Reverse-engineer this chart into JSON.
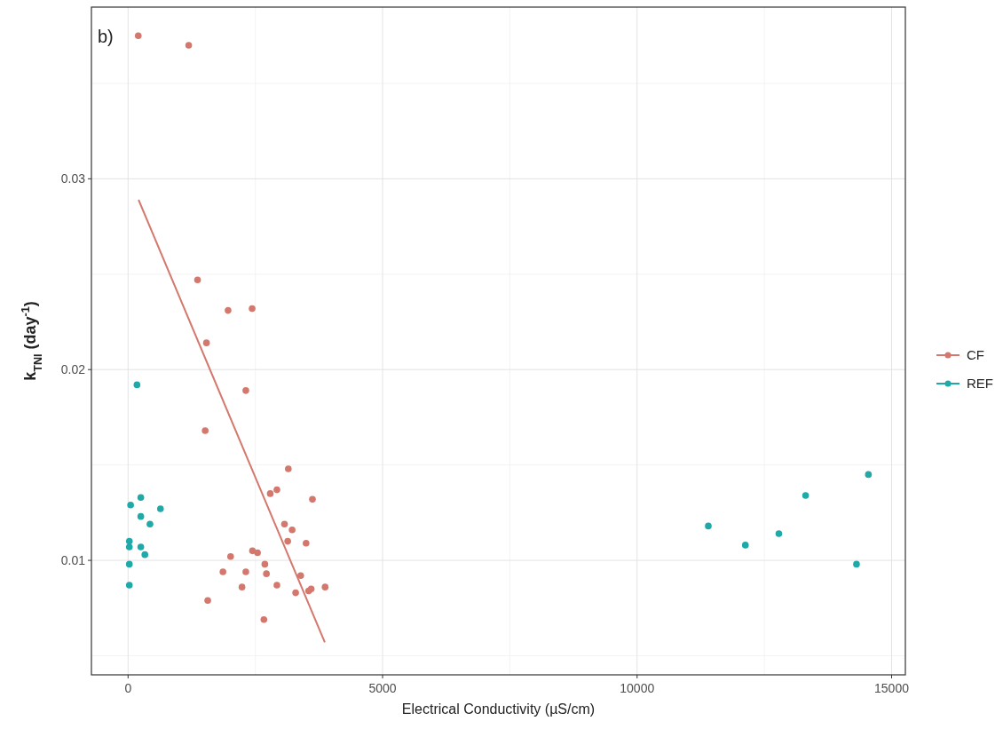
{
  "chart_data": {
    "type": "scatter",
    "xlabel": "Electrical Conductivity (µS/cm)",
    "ylabel": "k$_{TNI}$ (day$^{-1}$)",
    "annotations": [
      "b)"
    ],
    "xlim": [
      -720,
      15270
    ],
    "xticks": [
      0,
      5000,
      10000,
      15000
    ],
    "ylim": [
      0.004,
      0.039
    ],
    "yticks": [
      0.01,
      0.02,
      0.03
    ],
    "grid": true,
    "legend": "right",
    "marker": "circle",
    "series": [
      {
        "name": "CF",
        "color": "#d4786e",
        "x": [
          200,
          1191,
          1365,
          1964,
          2437,
          1540,
          2313,
          1515,
          3148,
          2793,
          2924,
          3622,
          3073,
          3223,
          3136,
          3497,
          2444,
          2543,
          2014,
          2687,
          1864,
          2313,
          2718,
          3391,
          2238,
          2924,
          3871,
          3292,
          3547,
          3597,
          1565,
          2668
        ],
        "values": [
          0.0375,
          0.037,
          0.0247,
          0.0231,
          0.0232,
          0.0214,
          0.0189,
          0.0168,
          0.0148,
          0.0135,
          0.0137,
          0.0132,
          0.0119,
          0.0116,
          0.011,
          0.0109,
          0.0105,
          0.0104,
          0.0102,
          0.0098,
          0.0094,
          0.0094,
          0.0093,
          0.0092,
          0.0086,
          0.0087,
          0.0086,
          0.0083,
          0.0084,
          0.0085,
          0.0079,
          0.0069
        ]
      },
      {
        "name": "REF",
        "color": "#1fa9a9",
        "x": [
          175,
          50,
          250,
          250,
          636,
          430,
          25,
          25,
          250,
          330,
          25,
          25,
          11399,
          12127,
          12785,
          13310,
          14544,
          14310
        ],
        "values": [
          0.0192,
          0.0129,
          0.0133,
          0.0123,
          0.0127,
          0.0119,
          0.011,
          0.0107,
          0.0107,
          0.0103,
          0.0098,
          0.0087,
          0.0118,
          0.0108,
          0.0114,
          0.0134,
          0.0145,
          0.0098
        ]
      },
      {
        "type": "line",
        "color": "#d4786e",
        "marker": "none",
        "x": [
          206,
          3865
        ],
        "values": [
          0.0289,
          0.0057
        ]
      }
    ]
  }
}
